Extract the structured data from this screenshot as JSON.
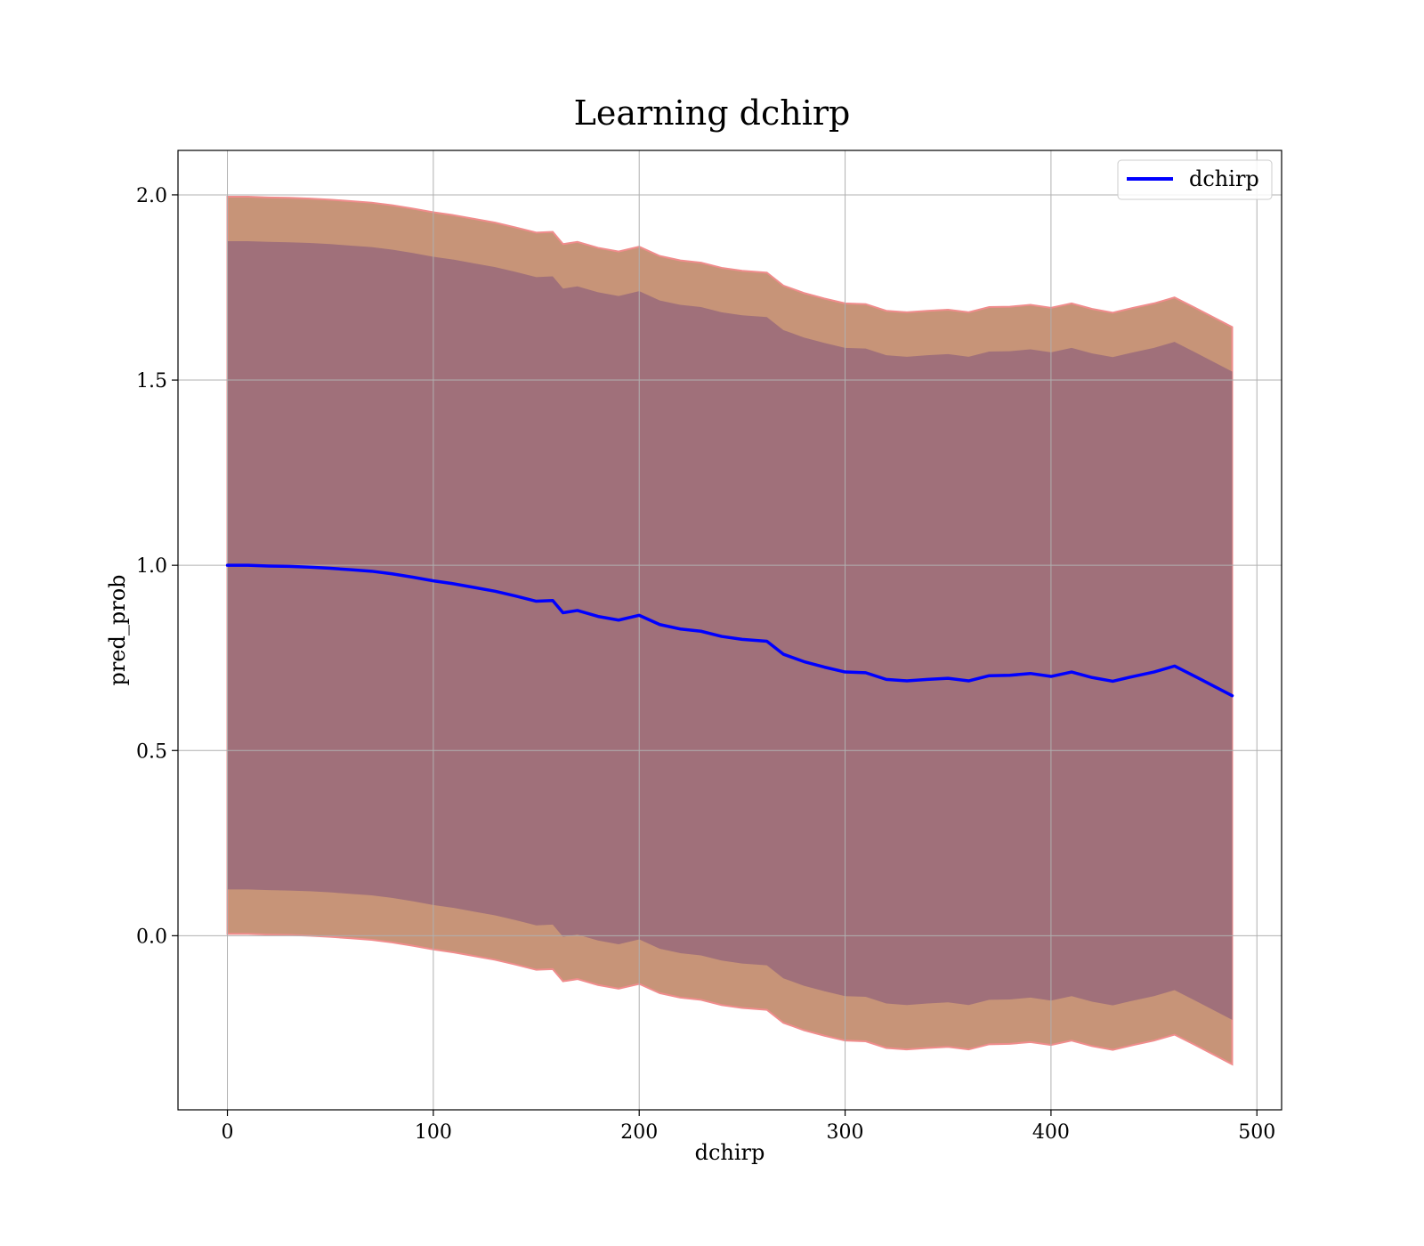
{
  "chart_data": {
    "type": "area",
    "title": "Learning dchirp",
    "xlabel": "dchirp",
    "ylabel": "pred_prob",
    "xlim": [
      -24,
      512
    ],
    "ylim": [
      -0.47,
      2.12
    ],
    "xticks": [
      0,
      100,
      200,
      300,
      400,
      500
    ],
    "yticks": [
      0.0,
      0.5,
      1.0,
      1.5,
      2.0
    ],
    "xtick_labels": [
      "0",
      "100",
      "200",
      "300",
      "400",
      "500"
    ],
    "ytick_labels": [
      "0.0",
      "0.5",
      "1.0",
      "1.5",
      "2.0"
    ],
    "grid": true,
    "legend": {
      "position": "top-right",
      "entries": [
        "dchirp"
      ]
    },
    "series": [
      {
        "name": "dchirp",
        "color": "#0000ff",
        "x": [
          0,
          10,
          20,
          30,
          40,
          50,
          60,
          70,
          80,
          90,
          100,
          110,
          120,
          130,
          140,
          150,
          158,
          163,
          170,
          180,
          190,
          200,
          210,
          220,
          230,
          240,
          250,
          262,
          270,
          280,
          290,
          300,
          310,
          320,
          330,
          340,
          350,
          360,
          370,
          380,
          390,
          400,
          410,
          420,
          430,
          440,
          450,
          460,
          470,
          488
        ],
        "y": [
          1.0,
          1.0,
          0.998,
          0.997,
          0.995,
          0.992,
          0.988,
          0.984,
          0.977,
          0.968,
          0.958,
          0.95,
          0.94,
          0.93,
          0.917,
          0.903,
          0.905,
          0.872,
          0.878,
          0.862,
          0.852,
          0.865,
          0.84,
          0.828,
          0.822,
          0.808,
          0.8,
          0.795,
          0.76,
          0.74,
          0.725,
          0.712,
          0.71,
          0.692,
          0.688,
          0.692,
          0.695,
          0.688,
          0.702,
          0.703,
          0.708,
          0.7,
          0.712,
          0.697,
          0.687,
          0.7,
          0.712,
          0.728,
          0.7,
          0.648
        ]
      }
    ],
    "bands": [
      {
        "description": "inner",
        "fill": "#a0707a",
        "half_width": 0.875
      },
      {
        "description": "outer",
        "fill": "#c79478",
        "stroke": "#f08c8c",
        "half_width": 0.995
      }
    ]
  }
}
